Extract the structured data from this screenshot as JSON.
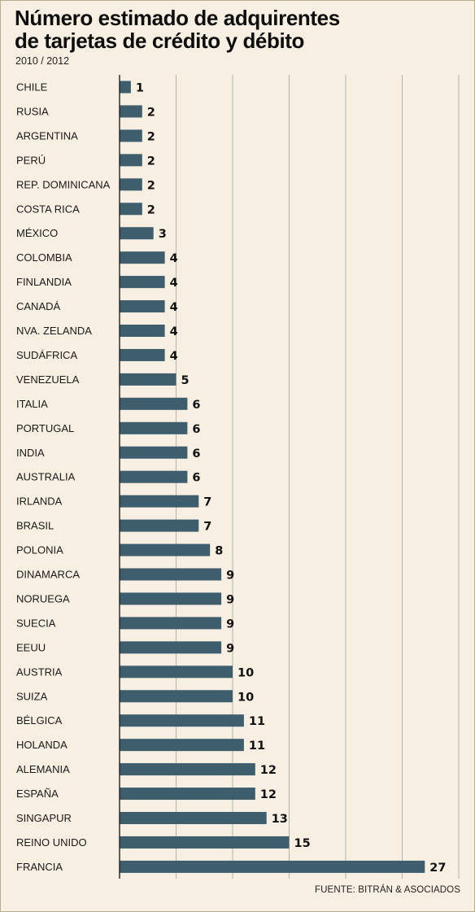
{
  "title_line1": "Número estimado de adquirentes",
  "title_line2": "de tarjetas de crédito y débito",
  "subtitle": "2010 / 2012",
  "source": "FUENTE: BITRÁN & ASOCIADOS",
  "colors": {
    "bar": "#3e5e6e",
    "background": "#f7efe2",
    "grid": "#b2b2b2",
    "axis": "#222222"
  },
  "chart_data": {
    "type": "bar",
    "orientation": "horizontal",
    "title": "Número estimado de adquirentes de tarjetas de crédito y débito",
    "subtitle": "2010 / 2012",
    "categories": [
      "CHILE",
      "RUSIA",
      "ARGENTINA",
      "PERÚ",
      "REP. DOMINICANA",
      "COSTA RICA",
      "MÉXICO",
      "COLOMBIA",
      "FINLANDIA",
      "CANADÁ",
      "NVA. ZELANDA",
      "SUDÁFRICA",
      "VENEZUELA",
      "ITALIA",
      "PORTUGAL",
      "INDIA",
      "AUSTRALIA",
      "IRLANDA",
      "BRASIL",
      "POLONIA",
      "DINAMARCA",
      "NORUEGA",
      "SUECIA",
      "EEUU",
      "AUSTRIA",
      "SUIZA",
      "BÉLGICA",
      "HOLANDA",
      "ALEMANIA",
      "ESPAÑA",
      "SINGAPUR",
      "REINO UNIDO",
      "FRANCIA"
    ],
    "values": [
      1,
      2,
      2,
      2,
      2,
      2,
      3,
      4,
      4,
      4,
      4,
      4,
      5,
      6,
      6,
      6,
      6,
      7,
      7,
      8,
      9,
      9,
      9,
      9,
      10,
      10,
      11,
      11,
      12,
      12,
      13,
      15,
      27
    ],
    "xlim": [
      0,
      30
    ],
    "grid": true,
    "source": "FUENTE: BITRÁN & ASOCIADOS"
  }
}
